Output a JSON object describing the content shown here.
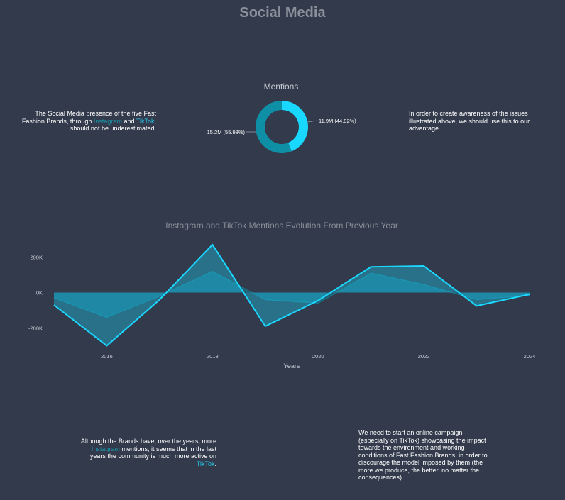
{
  "page": {
    "title": "Social Media"
  },
  "notes": {
    "left": {
      "before": "The Social Media presence of the five Fast Fashion Brands, through ",
      "instagram": "Instagram",
      "and": " and ",
      "tiktok": "TikTok",
      "after": ", should not be underestimated."
    },
    "right": "In order to create awareness of the issues illustrated above, we should use this to our advantage.",
    "bottom_left": {
      "before": "Although the Brands have, over the years, more ",
      "instagram": "Instagram",
      "middle": " mentions, it seems that in the last years the community is much more active on ",
      "tiktok": "TikTok",
      "after": "."
    },
    "bottom_right": "We need to start an online campaign (especially on TikTok) showcasing the impact towards the environment and working conditions of Fast Fashion Brands, in order to discourage the model imposed by them (the more we produce, the better, no matter the consequences)."
  },
  "chart_data": [
    {
      "type": "pie",
      "title": "Mentions",
      "slices": [
        {
          "value": 11.9,
          "label": "11.9M (44.02%)",
          "color": "#19d8ff"
        },
        {
          "value": 15.2,
          "label": "15.2M (55.98%)",
          "color": "#0e8fa6"
        }
      ]
    },
    {
      "type": "area",
      "title": "Instagram and TikTok Mentions Evolution From Previous Year",
      "xlabel": "Years",
      "ylabel": "",
      "x": [
        2015,
        2016,
        2017,
        2018,
        2019,
        2020,
        2021,
        2022,
        2023,
        2024
      ],
      "xlim": [
        2015,
        2024
      ],
      "x_ticks": [
        2016,
        2018,
        2020,
        2022,
        2024
      ],
      "ylim": [
        -310000,
        290000
      ],
      "y_ticks": [
        200000,
        0,
        -200000
      ],
      "y_tick_labels": [
        "200K",
        "0K",
        "-200K"
      ],
      "series": [
        {
          "name": "",
          "color": "#0f8ea5",
          "values": [
            -30000,
            -140000,
            -20000,
            120000,
            -40000,
            -60000,
            110000,
            45000,
            -40000,
            -15000
          ]
        },
        {
          "name": "",
          "color": "#1ad8ff",
          "values": [
            -70000,
            -300000,
            -40000,
            270000,
            -190000,
            -45000,
            145000,
            150000,
            -75000,
            -10000
          ]
        }
      ]
    }
  ]
}
